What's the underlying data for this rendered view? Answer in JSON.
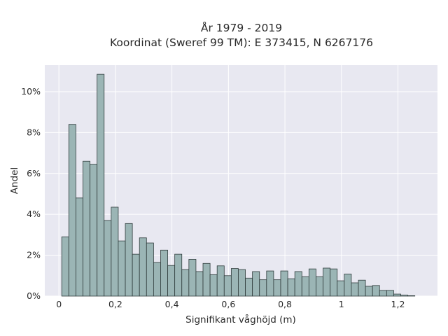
{
  "chart_data": {
    "type": "bar",
    "title_line1": "År 1979 - 2019",
    "title_line2": "Koordinat (Sweref 99 TM): E 373415, N 6267176",
    "xlabel": "Signifikant våghöjd (m)",
    "ylabel": "Andel",
    "xlim": [
      -0.05,
      1.34
    ],
    "ylim": [
      0,
      0.113
    ],
    "x_ticks": [
      0,
      0.2,
      0.4,
      0.6,
      0.8,
      1.0,
      1.2
    ],
    "x_tick_labels": [
      "0",
      "0,2",
      "0,4",
      "0,6",
      "0,8",
      "1",
      "1,2"
    ],
    "y_ticks": [
      0,
      0.02,
      0.04,
      0.06,
      0.08,
      0.1
    ],
    "y_tick_labels": [
      "0%",
      "2%",
      "4%",
      "6%",
      "8%",
      "10%"
    ],
    "grid": true,
    "background_color": "#e8e8f1",
    "bar_color": "#9bb5b5",
    "bin_width": 0.025,
    "bin_start": 0.01,
    "values": [
      0.029,
      0.084,
      0.048,
      0.066,
      0.0645,
      0.1085,
      0.037,
      0.0435,
      0.027,
      0.0355,
      0.0205,
      0.0285,
      0.026,
      0.0165,
      0.0225,
      0.015,
      0.0205,
      0.013,
      0.018,
      0.012,
      0.016,
      0.0105,
      0.0148,
      0.01,
      0.0135,
      0.013,
      0.0088,
      0.012,
      0.008,
      0.0123,
      0.008,
      0.0123,
      0.0085,
      0.012,
      0.0095,
      0.0133,
      0.0095,
      0.0137,
      0.0133,
      0.0075,
      0.0108,
      0.0065,
      0.0078,
      0.0048,
      0.0052,
      0.0028,
      0.0028,
      0.001,
      0.0005,
      0.0002
    ]
  }
}
